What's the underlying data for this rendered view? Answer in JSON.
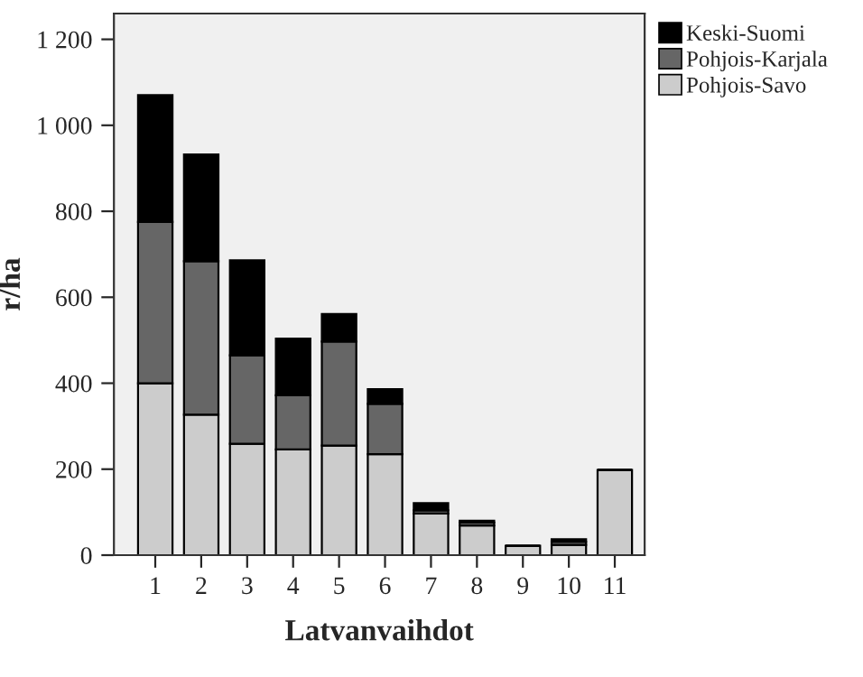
{
  "chart_data": {
    "type": "bar",
    "stacked": true,
    "xlabel": "Latvanvaihdot",
    "ylabel": "r/ha",
    "categories": [
      "1",
      "2",
      "3",
      "4",
      "5",
      "6",
      "7",
      "8",
      "9",
      "10",
      "11"
    ],
    "series": [
      {
        "name": "Pohjois-Savo",
        "color": "#cccccc",
        "values": [
          400,
          327,
          259,
          246,
          255,
          235,
          97,
          69,
          22,
          24,
          198
        ]
      },
      {
        "name": "Pohjois-Karjala",
        "color": "#666666",
        "values": [
          375,
          357,
          206,
          126,
          242,
          117,
          7,
          7,
          0,
          7,
          0
        ]
      },
      {
        "name": "Keski-Suomi",
        "color": "#000000",
        "values": [
          295,
          248,
          221,
          132,
          64,
          34,
          17,
          4,
          0,
          6,
          0
        ]
      }
    ],
    "ylim": [
      0,
      1260
    ],
    "yticks": [
      0,
      200,
      400,
      600,
      800,
      {
        "value": 1000,
        "label": "1 000"
      },
      {
        "value": 1200,
        "label": "1 200"
      }
    ],
    "grid": false,
    "legend": "top right"
  }
}
